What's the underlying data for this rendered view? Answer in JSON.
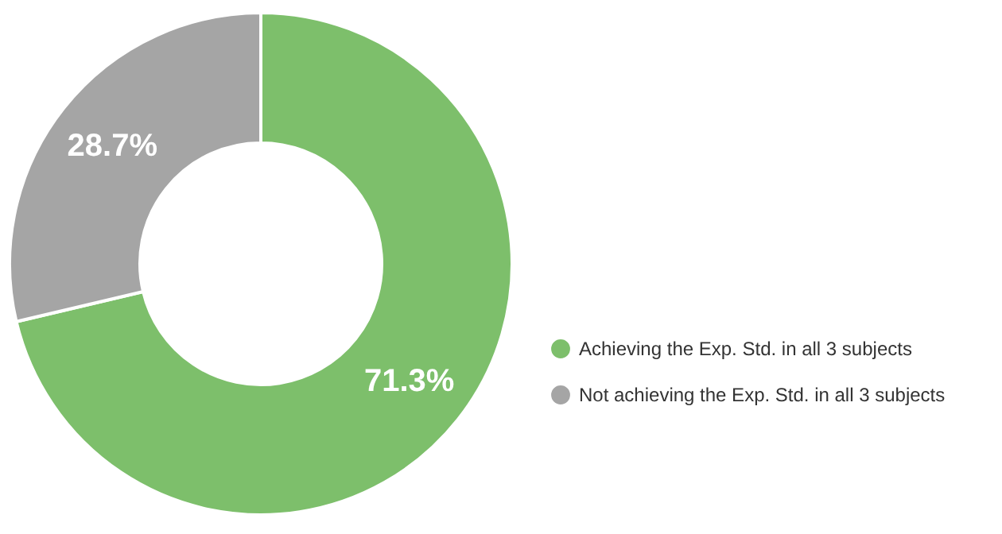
{
  "chart_data": {
    "type": "donut",
    "categories": [
      "Achieving the Exp. Std. in all 3 subjects",
      "Not achieving the Exp. Std. in all 3 subjects"
    ],
    "values": [
      71.3,
      28.7
    ],
    "colors": [
      "#7dbf6b",
      "#a5a5a5"
    ],
    "value_labels": [
      "71.3%",
      "28.7%"
    ],
    "legend": "right"
  }
}
